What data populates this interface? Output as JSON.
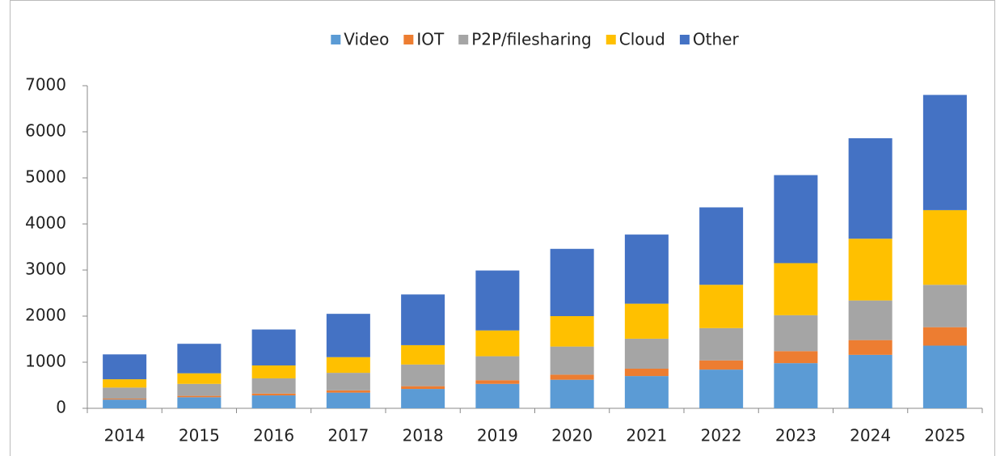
{
  "chart_data": {
    "type": "bar",
    "stacked": true,
    "categories": [
      "2014",
      "2015",
      "2016",
      "2017",
      "2018",
      "2019",
      "2020",
      "2021",
      "2022",
      "2023",
      "2024",
      "2025"
    ],
    "series": [
      {
        "name": "Video",
        "color": "#5b9bd5",
        "values": [
          190,
          240,
          280,
          340,
          420,
          530,
          620,
          700,
          840,
          980,
          1160,
          1360
        ]
      },
      {
        "name": "IOT",
        "color": "#ed7d31",
        "values": [
          20,
          30,
          40,
          50,
          60,
          80,
          110,
          160,
          200,
          260,
          320,
          400
        ]
      },
      {
        "name": "P2P/filesharing",
        "color": "#a5a5a5",
        "values": [
          240,
          260,
          330,
          380,
          470,
          520,
          610,
          650,
          700,
          780,
          860,
          920
        ]
      },
      {
        "name": "Cloud",
        "color": "#ffc000",
        "values": [
          180,
          230,
          280,
          340,
          420,
          560,
          660,
          760,
          940,
          1130,
          1340,
          1620
        ]
      },
      {
        "name": "Other",
        "color": "#4472c4",
        "values": [
          540,
          640,
          780,
          940,
          1100,
          1300,
          1460,
          1500,
          1680,
          1910,
          2180,
          2500
        ]
      }
    ],
    "ylim": [
      0,
      7000
    ],
    "yticks": [
      0,
      1000,
      2000,
      3000,
      4000,
      5000,
      6000,
      7000
    ],
    "grid": false,
    "legend": "top"
  }
}
